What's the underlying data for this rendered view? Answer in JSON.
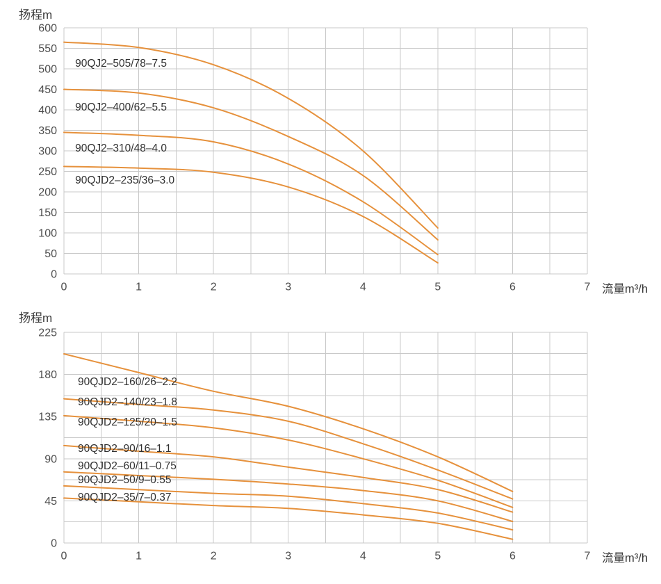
{
  "colors": {
    "curve": "#E6913C",
    "grid": "#C9C9C9",
    "tick_text": "#4C4C4C",
    "label_text": "#303030"
  },
  "chart_data": [
    {
      "type": "line",
      "ylabel": "扬程m",
      "xlabel": "流量m³/h",
      "xlim": [
        0,
        7
      ],
      "ylim": [
        0,
        600
      ],
      "xticks": [
        0,
        1,
        2,
        3,
        4,
        5,
        6,
        7
      ],
      "yticks": [
        0,
        50,
        100,
        150,
        200,
        250,
        300,
        350,
        400,
        450,
        500,
        550,
        600
      ],
      "xgrid_step": 0.5,
      "ygrid_step": 50,
      "grid": true,
      "legend": "none",
      "series": [
        {
          "label": "90QJ2–505/78–7.5",
          "x": [
            0,
            1,
            2,
            3,
            4,
            5
          ],
          "y": [
            565,
            552,
            510,
            428,
            300,
            112
          ],
          "label_x": 0.15,
          "label_y": 527
        },
        {
          "label": "90QJ2–400/62–5.5",
          "x": [
            0,
            1,
            2,
            3,
            4,
            5
          ],
          "y": [
            450,
            441,
            405,
            335,
            240,
            83
          ],
          "label_x": 0.15,
          "label_y": 420
        },
        {
          "label": "90QJ2–310/48–4.0",
          "x": [
            0,
            1,
            2,
            3,
            4,
            5
          ],
          "y": [
            345,
            338,
            322,
            268,
            176,
            47
          ],
          "label_x": 0.15,
          "label_y": 320
        },
        {
          "label": "90QJD2–235/36–3.0",
          "x": [
            0,
            1,
            2,
            3,
            4,
            5
          ],
          "y": [
            262,
            258,
            248,
            212,
            140,
            27
          ],
          "label_x": 0.15,
          "label_y": 242
        }
      ]
    },
    {
      "type": "line",
      "ylabel": "扬程m",
      "xlabel": "流量m³/h",
      "xlim": [
        0,
        7
      ],
      "ylim": [
        0,
        225
      ],
      "xticks": [
        0,
        1,
        2,
        3,
        4,
        5,
        6,
        7
      ],
      "yticks": [
        0,
        45,
        90,
        135,
        180,
        225
      ],
      "xgrid_step": 0.5,
      "ygrid_step": 22.5,
      "grid": true,
      "legend": "none",
      "series": [
        {
          "label": "90QJD2–160/26–2.2",
          "x": [
            0,
            1,
            2,
            3,
            4,
            5,
            6
          ],
          "y": [
            202,
            182,
            162,
            146,
            122,
            92,
            55
          ],
          "label_x": 0.186,
          "label_y": 178
        },
        {
          "label": "90QJD2–140/23–1.8",
          "x": [
            0,
            1,
            2,
            3,
            4,
            5,
            6
          ],
          "y": [
            154,
            148,
            142,
            130,
            106,
            78,
            47
          ],
          "label_x": 0.186,
          "label_y": 157
        },
        {
          "label": "90QJD2–125/20–1.5",
          "x": [
            0,
            1,
            2,
            3,
            4,
            5,
            6
          ],
          "y": [
            136,
            130,
            123,
            110,
            90,
            67,
            38
          ],
          "label_x": 0.186,
          "label_y": 135
        },
        {
          "label": "90QJD2–90/16–1.1",
          "x": [
            0,
            1,
            2,
            3,
            4,
            5,
            6
          ],
          "y": [
            104,
            98,
            92,
            81,
            70,
            57,
            33
          ],
          "label_x": 0.186,
          "label_y": 107
        },
        {
          "label": "90QJD2–60/11–0.75",
          "x": [
            0,
            1,
            2,
            3,
            4,
            5,
            6
          ],
          "y": [
            76,
            72,
            68,
            63,
            56,
            45,
            23
          ],
          "label_x": 0.186,
          "label_y": 88
        },
        {
          "label": "90QJD2–50/9–0.55",
          "x": [
            0,
            1,
            2,
            3,
            4,
            5,
            6
          ],
          "y": [
            61,
            57,
            53,
            50,
            42,
            32,
            14
          ],
          "label_x": 0.186,
          "label_y": 73.5
        },
        {
          "label": "90QJD2–35/7–0.37",
          "x": [
            0,
            1,
            2,
            3,
            4,
            5,
            6
          ],
          "y": [
            48,
            44,
            40,
            37,
            30,
            21,
            4
          ],
          "label_x": 0.186,
          "label_y": 55
        }
      ]
    }
  ]
}
